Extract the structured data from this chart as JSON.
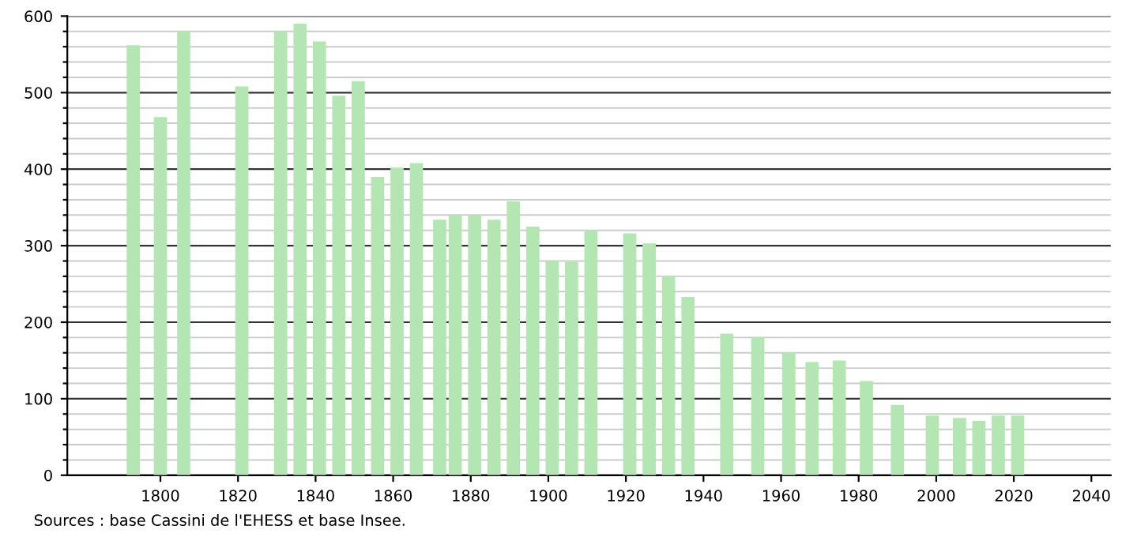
{
  "chart_data": {
    "type": "bar",
    "x": [
      1793,
      1800,
      1806,
      1821,
      1831,
      1836,
      1841,
      1846,
      1851,
      1856,
      1861,
      1866,
      1872,
      1876,
      1881,
      1886,
      1891,
      1896,
      1901,
      1906,
      1911,
      1921,
      1926,
      1931,
      1936,
      1946,
      1954,
      1962,
      1968,
      1975,
      1982,
      1990,
      1999,
      2006,
      2011,
      2016,
      2021
    ],
    "values": [
      562,
      468,
      580,
      508,
      580,
      590,
      567,
      496,
      515,
      390,
      402,
      408,
      334,
      340,
      340,
      334,
      358,
      325,
      280,
      279,
      320,
      316,
      303,
      259,
      233,
      185,
      180,
      160,
      148,
      150,
      123,
      92,
      78,
      75,
      71,
      78,
      78
    ],
    "color": "#b3e6b3",
    "xlim": [
      1776,
      2045
    ],
    "xticks": [
      1800,
      1820,
      1840,
      1860,
      1880,
      1900,
      1920,
      1940,
      1960,
      1980,
      2000,
      2020,
      2040
    ],
    "ylim": [
      0,
      600
    ],
    "yticks": [
      0,
      {
        "value": 20,
        "label": null
      },
      {
        "value": 40,
        "label": null
      },
      {
        "value": 60,
        "label": null
      },
      {
        "value": 80,
        "label": null
      },
      100,
      {
        "value": 120,
        "label": null
      },
      {
        "value": 140,
        "label": null
      },
      {
        "value": 160,
        "label": null
      },
      {
        "value": 180,
        "label": null
      },
      200,
      {
        "value": 220,
        "label": null
      },
      {
        "value": 240,
        "label": null
      },
      {
        "value": 260,
        "label": null
      },
      {
        "value": 280,
        "label": null
      },
      300,
      {
        "value": 320,
        "label": null
      },
      {
        "value": 340,
        "label": null
      },
      {
        "value": 360,
        "label": null
      },
      {
        "value": 380,
        "label": null
      },
      400,
      {
        "value": 420,
        "label": null
      },
      {
        "value": 440,
        "label": null
      },
      {
        "value": 460,
        "label": null
      },
      {
        "value": 480,
        "label": null
      },
      500,
      {
        "value": 520,
        "label": null
      },
      {
        "value": 540,
        "label": null
      },
      {
        "value": 560,
        "label": null
      },
      {
        "value": 580,
        "label": null
      },
      600
    ],
    "grid": "y",
    "annotations": [
      "Sources : base Cassini de l'EHESS et base Insee."
    ]
  }
}
